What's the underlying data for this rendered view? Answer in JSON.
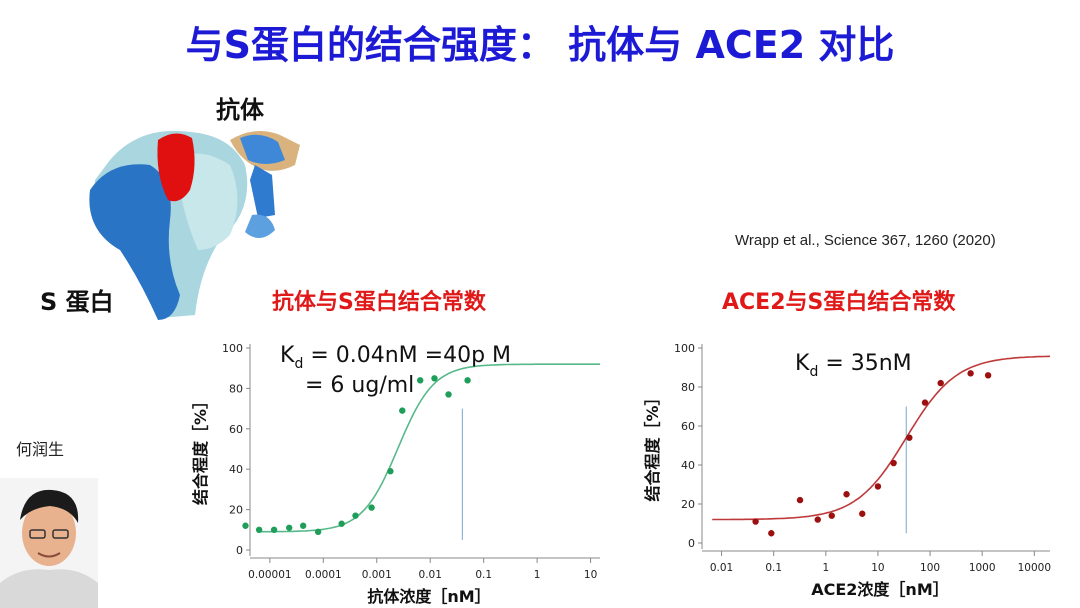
{
  "title": "与S蛋白的结合强度： 抗体与 ACE2 对比",
  "labels": {
    "antibody": "抗体",
    "spike": "S 蛋白",
    "citation": "Wrapp et al., Science 367, 1260 (2020)",
    "presenter": "何润生"
  },
  "colors": {
    "title": "#1d1ad6",
    "chart_title": "#e01818",
    "series1": "#1f9e5a",
    "fit1": "#57b98a",
    "series2": "#9c1010",
    "fit2": "#c0393a",
    "marker": "#8fb6d6"
  },
  "chart_data": [
    {
      "type": "scatter",
      "title": "抗体与S蛋白结合常数",
      "xlabel": "抗体浓度［nM］",
      "ylabel": "结合程度［%］",
      "x_scale": "log",
      "xlim": [
        6e-06,
        15
      ],
      "ylim": [
        0,
        100
      ],
      "x_ticks": [
        "0.00001",
        "0.0001",
        "0.001",
        "0.01",
        "0.1",
        "1",
        "10"
      ],
      "y_ticks": [
        "0",
        "20",
        "40",
        "60",
        "80",
        "100"
      ],
      "annotation": [
        "K",
        "d",
        " = 0.04nM =40p M",
        "= 6 ug/ml"
      ],
      "kd_nM": 0.04,
      "kd_text": "K",
      "kd_sub": "d",
      "points": [
        {
          "x": 3.5e-06,
          "y": 12
        },
        {
          "x": 6.3e-06,
          "y": 10
        },
        {
          "x": 1.2e-05,
          "y": 10
        },
        {
          "x": 2.3e-05,
          "y": 11
        },
        {
          "x": 4.2e-05,
          "y": 12
        },
        {
          "x": 8e-05,
          "y": 9
        },
        {
          "x": 0.00022,
          "y": 13
        },
        {
          "x": 0.0004,
          "y": 17
        },
        {
          "x": 0.0008,
          "y": 21
        },
        {
          "x": 0.0018,
          "y": 39
        },
        {
          "x": 0.003,
          "y": 69
        },
        {
          "x": 0.0065,
          "y": 84
        },
        {
          "x": 0.012,
          "y": 85
        },
        {
          "x": 0.022,
          "y": 77
        },
        {
          "x": 0.05,
          "y": 84
        }
      ],
      "fit": {
        "bottom": 9,
        "top": 92,
        "ec50": 0.0025,
        "hill": 1.3
      }
    },
    {
      "type": "scatter",
      "title": "ACE2与S蛋白结合常数",
      "xlabel": "ACE2浓度［nM］",
      "ylabel": "结合程度［%］",
      "x_scale": "log",
      "xlim": [
        0.006,
        20000
      ],
      "ylim": [
        0,
        100
      ],
      "x_ticks": [
        "0.01",
        "0.1",
        "1",
        "10",
        "100",
        "1000",
        "10000"
      ],
      "y_ticks": [
        "0",
        "20",
        "40",
        "60",
        "80",
        "100"
      ],
      "annotation": [
        "K",
        "d",
        " = 35nM"
      ],
      "kd_nM": 35,
      "kd_text": "K",
      "kd_sub": "d",
      "points": [
        {
          "x": 0.045,
          "y": 11
        },
        {
          "x": 0.09,
          "y": 5
        },
        {
          "x": 0.32,
          "y": 22
        },
        {
          "x": 0.7,
          "y": 12
        },
        {
          "x": 1.3,
          "y": 14
        },
        {
          "x": 2.5,
          "y": 25
        },
        {
          "x": 5,
          "y": 15
        },
        {
          "x": 10,
          "y": 29
        },
        {
          "x": 20,
          "y": 41
        },
        {
          "x": 40,
          "y": 54
        },
        {
          "x": 80,
          "y": 72
        },
        {
          "x": 160,
          "y": 82
        },
        {
          "x": 600,
          "y": 87
        },
        {
          "x": 1300,
          "y": 86
        }
      ],
      "fit": {
        "bottom": 12,
        "top": 96,
        "ec50": 35,
        "hill": 0.9
      }
    }
  ]
}
